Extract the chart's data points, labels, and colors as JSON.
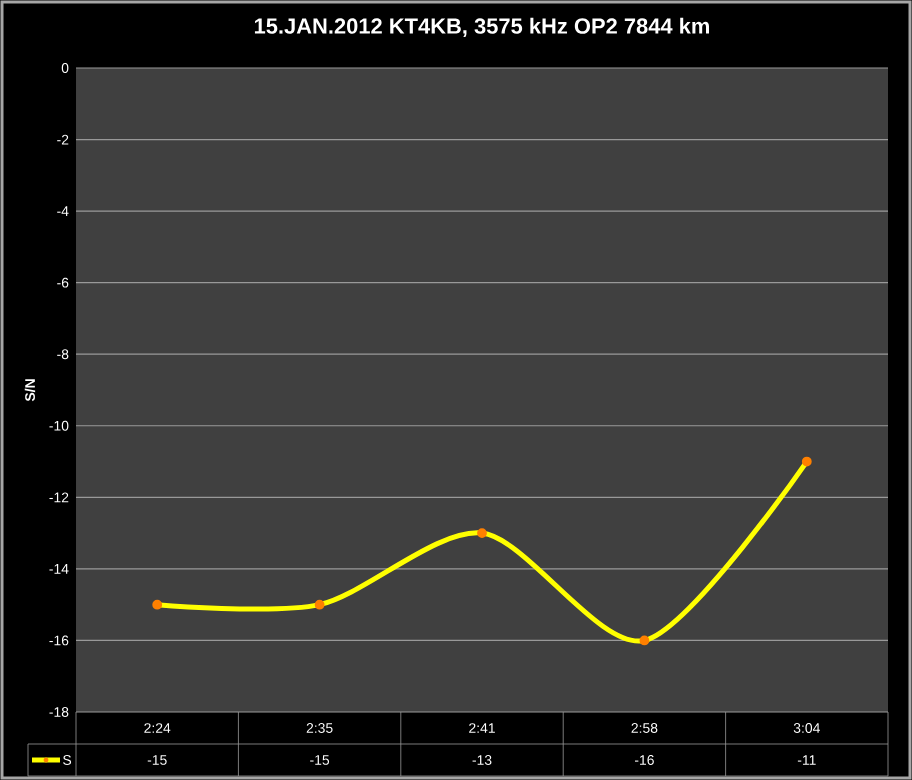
{
  "chart_data": {
    "type": "line",
    "title": "15.JAN.2012 KT4KB, 3575 kHz OP2 7844 km",
    "ylabel": "S/N",
    "categories": [
      "2:24",
      "2:35",
      "2:41",
      "2:58",
      "3:04"
    ],
    "series": [
      {
        "name": "S",
        "color": "#ffff00",
        "values": [
          -15,
          -15,
          -13,
          -16,
          -11
        ]
      }
    ],
    "ylim": [
      -18,
      0
    ],
    "yticks": [
      -18,
      -16,
      -14,
      -12,
      -10,
      -8,
      -6,
      -4,
      -2,
      0
    ],
    "grid": "y",
    "legend": "bottom",
    "data_labels": true,
    "marker": "circle",
    "line_style": "solid"
  }
}
